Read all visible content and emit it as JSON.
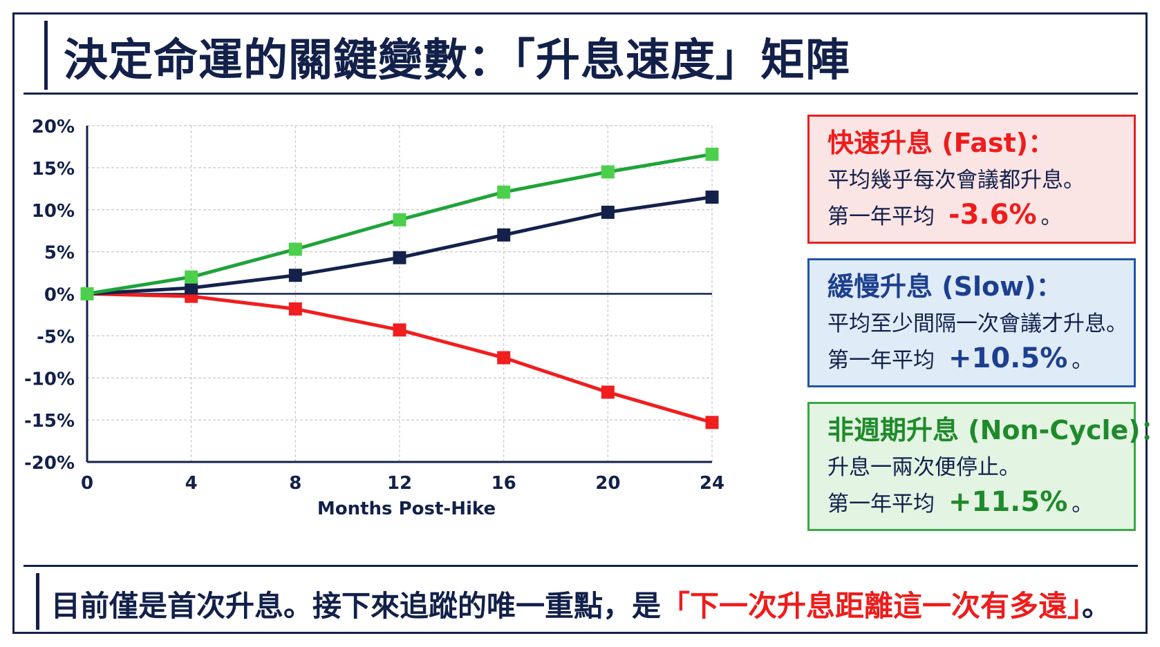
{
  "title": "決定命運的關鍵變數：「升息速度」矩陣",
  "chart_data": {
    "type": "line",
    "xlabel": "Months Post-Hike",
    "ylabel": "",
    "x": [
      0,
      4,
      8,
      12,
      16,
      20,
      24
    ],
    "xlim": [
      0,
      24
    ],
    "ylim": [
      -20,
      20
    ],
    "x_ticks": [
      "0",
      "4",
      "8",
      "12",
      "16",
      "20",
      "24"
    ],
    "y_ticks": [
      "20%",
      "15%",
      "10%",
      "5%",
      "0%",
      "-5%",
      "-10%",
      "-15%",
      "-20%"
    ],
    "y_tick_values": [
      20,
      15,
      10,
      5,
      0,
      -5,
      -10,
      -15,
      -20
    ],
    "grid": true,
    "series": [
      {
        "key": "fast",
        "values": [
          0,
          -0.3,
          -1.8,
          -4.3,
          -7.6,
          -11.7,
          -15.3
        ],
        "color": "#f01e1e"
      },
      {
        "key": "slow",
        "values": [
          0,
          0.7,
          2.2,
          4.3,
          7.0,
          9.7,
          11.5
        ],
        "color": "#14214b"
      },
      {
        "key": "noncycle",
        "values": [
          0,
          2.0,
          5.3,
          8.8,
          12.1,
          14.5,
          16.6
        ],
        "color": "#1fa33a",
        "marker_color": "#4cd04c"
      }
    ]
  },
  "cards": {
    "fast": {
      "title": "快速升息 (Fast)：",
      "desc": "平均幾乎每次會議都升息。",
      "avg_label": "第一年平均",
      "avg_value": "-3.6%",
      "avg_suffix": "。"
    },
    "slow": {
      "title": "緩慢升息 (Slow)：",
      "desc": "平均至少間隔一次會議才升息。",
      "avg_label": "第一年平均",
      "avg_value": "+10.5%",
      "avg_suffix": "。"
    },
    "noncycle": {
      "title": "非週期升息 (Non-Cycle)：",
      "desc": "升息一兩次便停止。",
      "avg_label": "第一年平均",
      "avg_value": "+11.5%",
      "avg_suffix": "。"
    }
  },
  "footer": {
    "text_before": "目前僅是首次升息。接下來追蹤的唯一重點，是",
    "highlight": "「下一次升息距離這一次有多遠」",
    "text_after": "。"
  },
  "colors": {
    "navy": "#12204a",
    "red": "#ee1c1c",
    "blue": "#1c3f8f",
    "green": "#1f8a2b"
  }
}
